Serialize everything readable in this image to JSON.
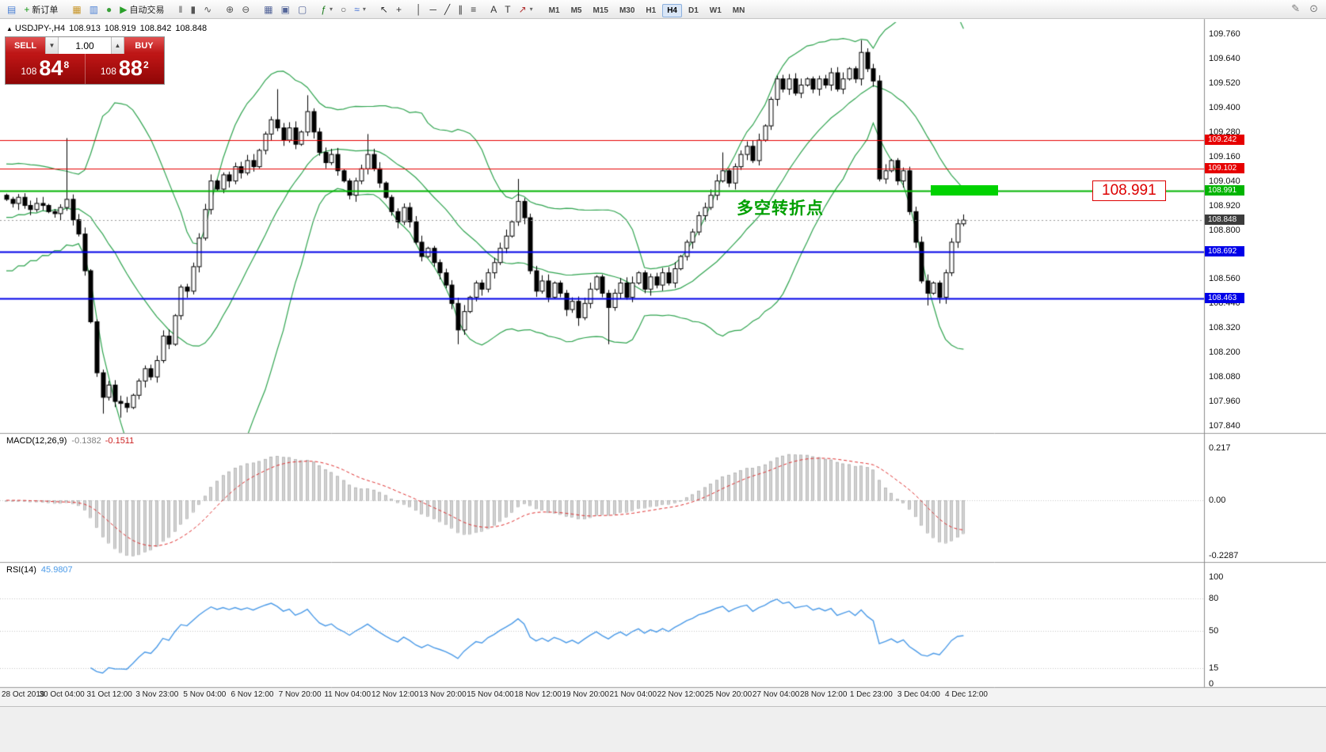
{
  "toolbar": {
    "items": [
      {
        "name": "terminal-icon",
        "icon": "▤",
        "color": "#4a7fd4"
      },
      {
        "name": "new-order-button",
        "icon": "+",
        "color": "#129612",
        "label": "新订单"
      },
      {
        "type": "sep"
      },
      {
        "name": "profiles-icon",
        "icon": "▦",
        "color": "#c8962a"
      },
      {
        "name": "charts-bar-icon",
        "icon": "▥",
        "color": "#4a7fd4"
      },
      {
        "name": "strategy-icon",
        "icon": "●",
        "color": "#3aa03a"
      },
      {
        "name": "autotrading-button",
        "icon": "▶",
        "color": "#2aa02a",
        "label": "自动交易"
      },
      {
        "type": "sep"
      },
      {
        "name": "bars-chart-icon",
        "icon": "‖",
        "color": "#555555"
      },
      {
        "name": "candles-chart-icon",
        "icon": "▮",
        "color": "#555555"
      },
      {
        "name": "line-chart-icon",
        "icon": "∿",
        "color": "#555555"
      },
      {
        "type": "sep"
      },
      {
        "name": "zoom-in-icon",
        "icon": "⊕",
        "color": "#555555"
      },
      {
        "name": "zoom-out-icon",
        "icon": "⊖",
        "color": "#555555"
      },
      {
        "type": "sep"
      },
      {
        "name": "tile-windows-icon",
        "icon": "▦",
        "color": "#556699"
      },
      {
        "name": "arrange-icon",
        "icon": "▣",
        "color": "#556699"
      },
      {
        "name": "cascade-icon",
        "icon": "▢",
        "color": "#556699"
      },
      {
        "type": "sep"
      },
      {
        "name": "indicators-button",
        "icon": "ƒ",
        "color": "#1a7a1a",
        "caret": true
      },
      {
        "name": "cycles-icon",
        "icon": "○",
        "color": "#555555"
      },
      {
        "name": "objects-button",
        "icon": "≈",
        "color": "#3a6ad4",
        "caret": true
      },
      {
        "type": "sep"
      },
      {
        "name": "cursor-icon",
        "icon": "↖",
        "color": "#333333"
      },
      {
        "name": "crosshair-icon",
        "icon": "+",
        "color": "#333333"
      },
      {
        "type": "sep"
      },
      {
        "name": "vertical-line-icon",
        "icon": "│",
        "color": "#333333"
      },
      {
        "name": "horizontal-line-icon",
        "icon": "─",
        "color": "#333333"
      },
      {
        "name": "trendline-icon",
        "icon": "╱",
        "color": "#333333"
      },
      {
        "name": "channel-icon",
        "icon": "∥",
        "color": "#333333"
      },
      {
        "name": "fibonacci-icon",
        "icon": "≡",
        "color": "#333333"
      },
      {
        "type": "sep"
      },
      {
        "name": "text-icon",
        "icon": "A",
        "color": "#333333"
      },
      {
        "name": "label-icon",
        "icon": "T",
        "color": "#333333"
      },
      {
        "name": "arrow-tool-icon",
        "icon": "↗",
        "color": "#b03030",
        "caret": true
      },
      {
        "type": "sep"
      }
    ],
    "timeframes": [
      "M1",
      "M5",
      "M15",
      "M30",
      "H1",
      "H4",
      "D1",
      "W1",
      "MN"
    ],
    "active_timeframe": "H4",
    "right_icons": [
      {
        "name": "edit-icon",
        "icon": "✎"
      },
      {
        "name": "search-icon",
        "icon": "⊙"
      }
    ]
  },
  "chart_header": {
    "marker": "▲",
    "symbol": "USDJPY-,H4",
    "open": "108.913",
    "high": "108.919",
    "low": "108.842",
    "close": "108.848"
  },
  "trade_panel": {
    "sell_label": "SELL",
    "buy_label": "BUY",
    "volume": "1.00",
    "spin_down": "▼",
    "spin_up": "▲",
    "sell_prefix": "108",
    "sell_big": "84",
    "sell_sup": "8",
    "buy_prefix": "108",
    "buy_big": "88",
    "buy_sup": "2"
  },
  "annotations": {
    "price_callout": "108.991",
    "turning_point": "多空转折点",
    "highlight_color": "#00d200"
  },
  "macd_panel": {
    "name": "MACD(12,26,9)",
    "value_main": "-0.1382",
    "value_signal": "-0.1511",
    "axis_values": [
      0.217,
      0,
      -0.2287
    ],
    "axis_labels": [
      "0.217",
      "0.00",
      "-0.2287"
    ]
  },
  "rsi_panel": {
    "name": "RSI(14)",
    "value": "45.9807",
    "axis_values": [
      100,
      80,
      50,
      15,
      0
    ],
    "axis_labels": [
      "100",
      "80",
      "50",
      "15",
      "0"
    ],
    "levels": [
      80,
      50,
      15
    ]
  },
  "chart_data": {
    "type": "candlestick",
    "symbol": "USDJPY",
    "timeframe": "H4",
    "y_axis": {
      "max": 109.76,
      "min": 107.84,
      "step": 0.12,
      "tick_labels": [
        "109.760",
        "109.640",
        "109.520",
        "109.400",
        "109.280",
        "109.160",
        "109.040",
        "108.920",
        "108.800",
        "108.680",
        "108.560",
        "108.440",
        "108.320",
        "108.200",
        "108.080",
        "107.960",
        "107.840"
      ]
    },
    "first_open": 108.97,
    "closes": [
      108.95,
      108.93,
      108.96,
      108.92,
      108.9,
      108.93,
      108.92,
      108.89,
      108.88,
      108.91,
      108.95,
      108.85,
      108.78,
      108.6,
      108.35,
      108.1,
      107.98,
      108.04,
      107.96,
      107.95,
      107.93,
      107.99,
      108.06,
      108.12,
      108.08,
      108.16,
      108.28,
      108.24,
      108.38,
      108.52,
      108.5,
      108.62,
      108.76,
      108.9,
      109.04,
      109.0,
      109.07,
      109.04,
      109.11,
      109.08,
      109.14,
      109.11,
      109.19,
      109.27,
      109.34,
      109.3,
      109.24,
      109.3,
      109.22,
      109.28,
      109.38,
      109.28,
      109.18,
      109.13,
      109.17,
      109.09,
      109.04,
      108.97,
      109.04,
      109.1,
      109.17,
      109.1,
      109.03,
      108.96,
      108.89,
      108.84,
      108.91,
      108.84,
      108.74,
      108.67,
      108.71,
      108.64,
      108.59,
      108.53,
      108.44,
      108.31,
      108.4,
      108.47,
      108.54,
      108.51,
      108.59,
      108.64,
      108.71,
      108.77,
      108.84,
      108.94,
      108.86,
      108.6,
      108.5,
      108.55,
      108.47,
      108.54,
      108.49,
      108.41,
      108.45,
      108.37,
      108.44,
      108.51,
      108.57,
      108.49,
      108.42,
      108.49,
      108.54,
      108.47,
      108.54,
      108.59,
      108.51,
      108.57,
      108.53,
      108.59,
      108.54,
      108.61,
      108.67,
      108.74,
      108.79,
      108.87,
      108.91,
      108.97,
      109.04,
      109.09,
      109.03,
      109.11,
      109.17,
      109.21,
      109.14,
      109.24,
      109.31,
      109.44,
      109.54,
      109.49,
      109.54,
      109.47,
      109.51,
      109.54,
      109.49,
      109.54,
      109.51,
      109.57,
      109.49,
      109.54,
      109.59,
      109.54,
      109.67,
      109.59,
      109.53,
      109.05,
      109.09,
      109.14,
      109.04,
      109.09,
      108.89,
      108.74,
      108.55,
      108.49,
      108.54,
      108.47,
      108.59,
      108.74,
      108.83,
      108.848
    ],
    "wick_overrides": {
      "10": {
        "high": 109.25
      },
      "16": {
        "low": 107.9
      },
      "19": {
        "low": 107.88
      },
      "45": {
        "high": 109.49
      },
      "50": {
        "high": 109.46
      },
      "60": {
        "high": 109.27
      },
      "75": {
        "low": 108.24
      },
      "85": {
        "high": 109.05
      },
      "95": {
        "low": 108.33
      },
      "100": {
        "low": 108.24
      },
      "119": {
        "high": 109.18
      },
      "142": {
        "high": 109.73
      },
      "153": {
        "low": 108.43
      },
      "155": {
        "low": 108.44
      }
    },
    "hlines": [
      {
        "price": 109.242,
        "label": "109.242",
        "color": "#e60000",
        "width": 1
      },
      {
        "price": 109.102,
        "label": "109.102",
        "color": "#e60000",
        "width": 1
      },
      {
        "price": 108.991,
        "label": "108.991",
        "color": "#00b400",
        "width": 2
      },
      {
        "price": 108.692,
        "label": "108.692",
        "color": "#0000e8",
        "width": 2
      },
      {
        "price": 108.463,
        "label": "108.463",
        "color": "#0000e8",
        "width": 2
      }
    ],
    "bid_line": {
      "price": 108.848,
      "label": "108.848",
      "color": "#3c3c3c"
    },
    "bollinger": {
      "period": 20,
      "deviation": 2,
      "color": "#2fa44f"
    },
    "macd": {
      "fast": 12,
      "slow": 26,
      "signal": 9,
      "hist_color": "#d2d2d2",
      "hist_edge": "#ababab",
      "signal_color": "#e03030"
    },
    "rsi": {
      "period": 14,
      "color": "#4a9ae8"
    },
    "time_labels": [
      "28 Oct 2019",
      "30 Oct 04:00",
      "31 Oct 12:00",
      "3 Nov 23:00",
      "5 Nov 04:00",
      "6 Nov 12:00",
      "7 Nov 20:00",
      "11 Nov 04:00",
      "12 Nov 12:00",
      "13 Nov 20:00",
      "15 Nov 04:00",
      "18 Nov 12:00",
      "19 Nov 20:00",
      "21 Nov 04:00",
      "22 Nov 12:00",
      "25 Nov 20:00",
      "27 Nov 04:00",
      "28 Nov 12:00",
      "1 Dec 23:00",
      "3 Dec 04:00",
      "4 Dec 12:00"
    ]
  }
}
